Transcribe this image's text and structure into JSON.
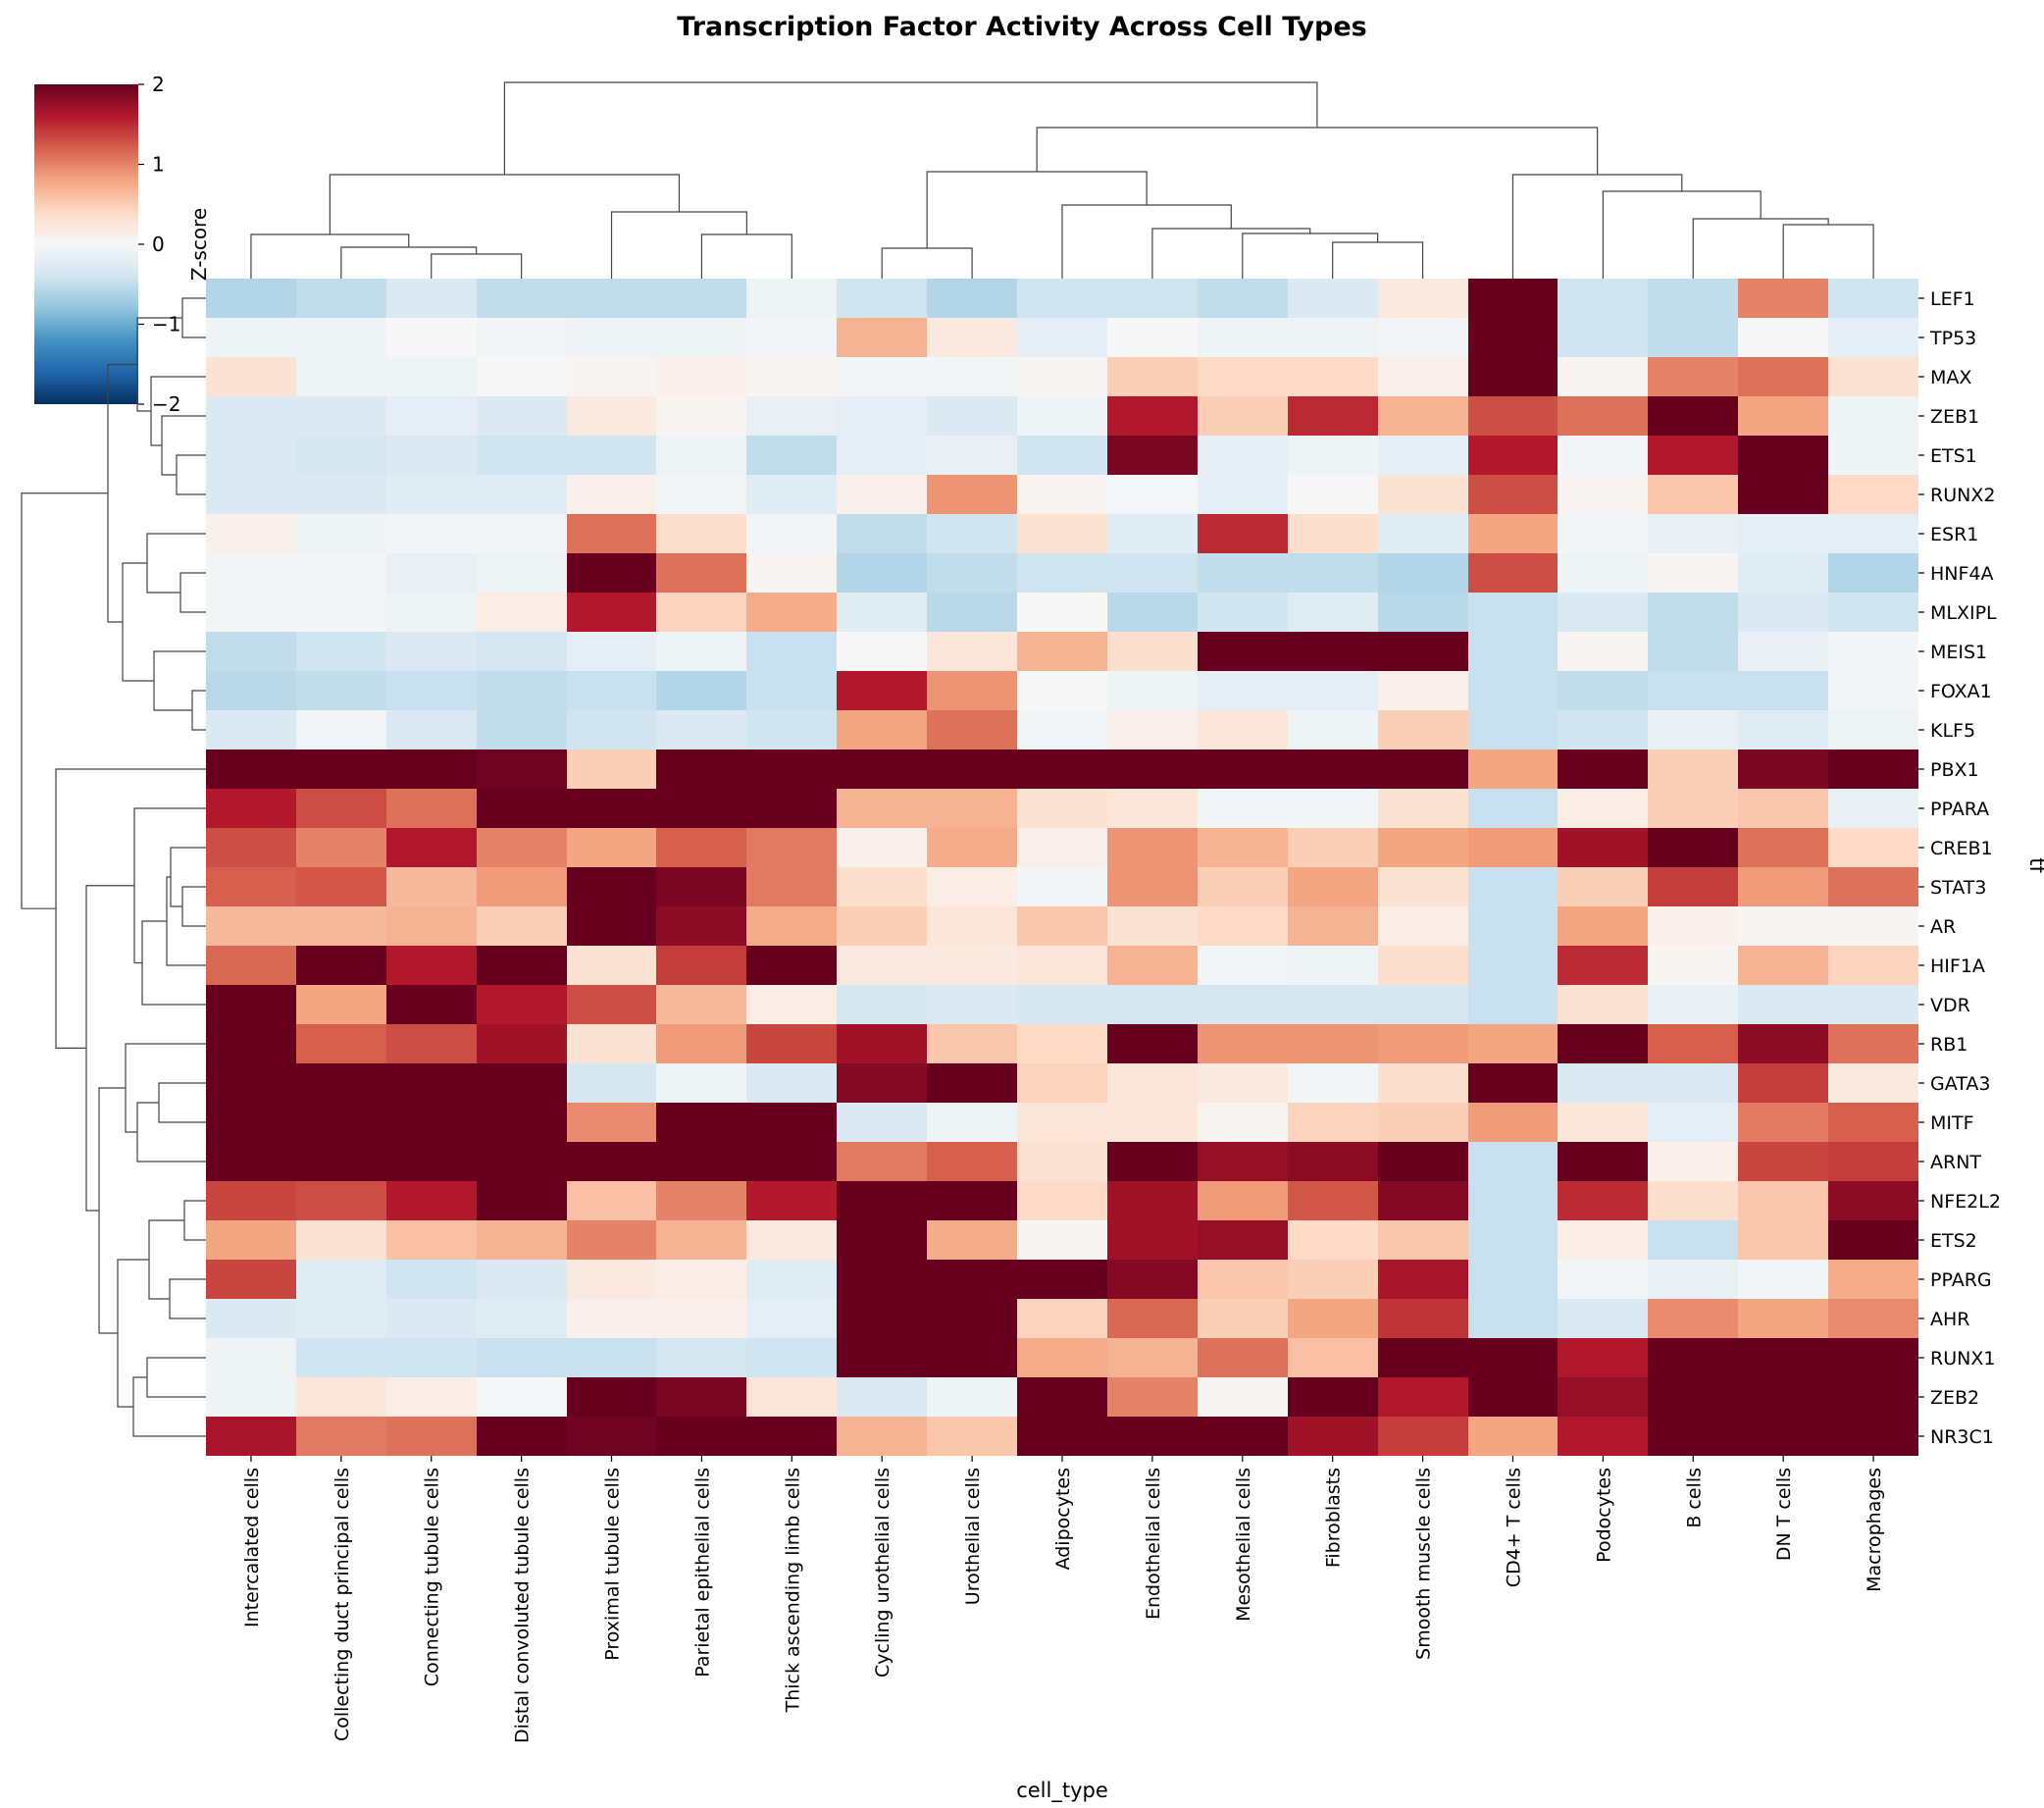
{
  "chart_data": {
    "type": "heatmap",
    "title": "Transcription Factor Activity Across Cell Types",
    "xlabel": "cell_type",
    "ylabel": "tf",
    "colorbar": {
      "label": "Z-score",
      "colormap": "RdBu_r",
      "vmin": -2,
      "vmax": 2,
      "ticks": [
        2,
        1,
        0,
        -1,
        -2
      ],
      "tick_labels": [
        "2",
        "1",
        "0",
        "−1",
        "−2"
      ]
    },
    "dendrograms": [
      "columns",
      "rows"
    ],
    "columns": [
      "Intercalated cells",
      "Collecting duct principal cells",
      "Connecting tubule cells",
      "Distal convoluted tubule cells",
      "Proximal tubule cells",
      "Parietal epithelial cells",
      "Thick ascending limb cells",
      "Cycling urothelial cells",
      "Urothelial cells",
      "Adipocytes",
      "Endothelial cells",
      "Mesothelial cells",
      "Fibroblasts",
      "Smooth muscle cells",
      "CD4+ T cells",
      "Podocytes",
      "B cells",
      "DN T cells",
      "Macrophages"
    ],
    "rows": [
      "LEF1",
      "TP53",
      "MAX",
      "ZEB1",
      "ETS1",
      "RUNX2",
      "ESR1",
      "HNF4A",
      "MLXIPL",
      "MEIS1",
      "FOXA1",
      "KLF5",
      "PBX1",
      "PPARA",
      "CREB1",
      "STAT3",
      "AR",
      "HIF1A",
      "VDR",
      "RB1",
      "GATA3",
      "MITF",
      "ARNT",
      "NFE2L2",
      "ETS2",
      "PPARG",
      "AHR",
      "RUNX1",
      "ZEB2",
      "NR3C1"
    ],
    "values": [
      [
        -0.6,
        -0.5,
        -0.3,
        -0.5,
        -0.5,
        -0.5,
        -0.1,
        -0.4,
        -0.6,
        -0.4,
        -0.4,
        -0.5,
        -0.3,
        0.2,
        2.0,
        -0.4,
        -0.5,
        1.0,
        -0.4
      ],
      [
        -0.1,
        -0.1,
        0.0,
        -0.05,
        -0.1,
        -0.1,
        -0.05,
        0.7,
        0.2,
        -0.2,
        0.0,
        -0.1,
        -0.1,
        -0.05,
        2.0,
        -0.4,
        -0.5,
        0.0,
        -0.2
      ],
      [
        0.3,
        -0.1,
        -0.1,
        0.0,
        0.05,
        0.1,
        0.05,
        -0.05,
        -0.05,
        0.05,
        0.5,
        0.4,
        0.4,
        0.1,
        2.0,
        0.05,
        1.0,
        1.1,
        0.3
      ],
      [
        -0.3,
        -0.3,
        -0.2,
        -0.3,
        0.2,
        0.05,
        -0.15,
        -0.2,
        -0.3,
        -0.1,
        1.6,
        0.5,
        1.5,
        0.7,
        1.3,
        1.1,
        2.0,
        0.8,
        -0.1
      ],
      [
        -0.3,
        -0.35,
        -0.3,
        -0.4,
        -0.4,
        -0.1,
        -0.5,
        -0.2,
        -0.15,
        -0.4,
        1.9,
        -0.2,
        -0.1,
        -0.2,
        1.6,
        -0.05,
        1.6,
        2.0,
        -0.1
      ],
      [
        -0.3,
        -0.3,
        -0.25,
        -0.25,
        0.1,
        -0.05,
        -0.25,
        0.1,
        0.9,
        0.05,
        -0.02,
        -0.2,
        0.0,
        0.3,
        1.3,
        0.05,
        0.55,
        2.0,
        0.4
      ],
      [
        0.1,
        -0.1,
        -0.05,
        -0.05,
        1.1,
        0.35,
        -0.05,
        -0.5,
        -0.4,
        0.3,
        -0.25,
        1.5,
        0.35,
        -0.25,
        0.8,
        -0.05,
        -0.15,
        -0.2,
        -0.2
      ],
      [
        -0.05,
        -0.05,
        -0.15,
        -0.1,
        2.0,
        1.1,
        0.05,
        -0.6,
        -0.5,
        -0.4,
        -0.4,
        -0.5,
        -0.5,
        -0.6,
        1.3,
        -0.1,
        0.05,
        -0.25,
        -0.6
      ],
      [
        -0.05,
        -0.05,
        -0.1,
        0.15,
        1.6,
        0.45,
        0.75,
        -0.25,
        -0.55,
        0.0,
        -0.55,
        -0.4,
        -0.25,
        -0.55,
        -0.45,
        -0.3,
        -0.5,
        -0.3,
        -0.4
      ],
      [
        -0.5,
        -0.4,
        -0.3,
        -0.35,
        -0.2,
        -0.1,
        -0.45,
        0.0,
        0.25,
        0.7,
        0.35,
        2.0,
        2.0,
        2.0,
        -0.45,
        0.05,
        -0.5,
        -0.15,
        -0.05
      ],
      [
        -0.55,
        -0.5,
        -0.45,
        -0.5,
        -0.45,
        -0.6,
        -0.45,
        1.6,
        0.9,
        0.0,
        -0.1,
        -0.2,
        -0.2,
        0.1,
        -0.45,
        -0.5,
        -0.45,
        -0.45,
        -0.05
      ],
      [
        -0.3,
        -0.05,
        -0.3,
        -0.5,
        -0.4,
        -0.3,
        -0.4,
        0.8,
        1.1,
        -0.05,
        0.1,
        0.25,
        -0.1,
        0.5,
        -0.45,
        -0.4,
        -0.15,
        -0.25,
        -0.1
      ],
      [
        2.0,
        2.0,
        2.0,
        1.95,
        0.5,
        2.0,
        2.0,
        2.0,
        2.0,
        2.0,
        2.0,
        2.0,
        2.0,
        2.0,
        0.8,
        2.0,
        0.5,
        1.9,
        2.0
      ],
      [
        1.6,
        1.3,
        1.1,
        2.0,
        2.0,
        2.0,
        2.0,
        0.7,
        0.7,
        0.3,
        0.25,
        -0.05,
        -0.05,
        0.3,
        -0.45,
        0.15,
        0.5,
        0.55,
        -0.15
      ],
      [
        1.3,
        1.0,
        1.6,
        1.0,
        0.8,
        1.2,
        1.05,
        0.1,
        0.75,
        0.1,
        0.9,
        0.7,
        0.5,
        0.8,
        0.85,
        1.7,
        2.0,
        1.1,
        0.4
      ],
      [
        1.2,
        1.25,
        0.65,
        0.85,
        2.0,
        1.9,
        1.05,
        0.35,
        0.15,
        -0.05,
        0.9,
        0.5,
        0.8,
        0.3,
        -0.45,
        0.5,
        1.4,
        0.85,
        1.1
      ],
      [
        0.65,
        0.65,
        0.7,
        0.5,
        2.0,
        1.8,
        0.75,
        0.5,
        0.25,
        0.55,
        0.3,
        0.4,
        0.7,
        0.15,
        -0.45,
        0.8,
        0.1,
        0.05,
        0.05
      ],
      [
        1.15,
        2.0,
        1.6,
        2.0,
        0.3,
        1.4,
        2.0,
        0.2,
        0.2,
        0.25,
        0.7,
        -0.05,
        -0.1,
        0.35,
        -0.45,
        1.5,
        0.05,
        0.7,
        0.45
      ],
      [
        2.0,
        0.8,
        2.0,
        1.6,
        1.3,
        0.65,
        0.15,
        -0.35,
        -0.3,
        -0.35,
        -0.35,
        -0.35,
        -0.35,
        -0.35,
        -0.45,
        0.3,
        -0.15,
        -0.3,
        -0.3
      ],
      [
        2.0,
        1.2,
        1.3,
        1.7,
        0.3,
        0.85,
        1.35,
        1.7,
        0.55,
        0.4,
        2.0,
        0.9,
        0.9,
        0.85,
        0.8,
        2.0,
        1.2,
        1.8,
        1.1
      ],
      [
        2.0,
        2.0,
        2.0,
        2.0,
        -0.35,
        -0.1,
        -0.3,
        1.85,
        2.0,
        0.45,
        0.25,
        0.2,
        -0.05,
        0.35,
        2.0,
        -0.3,
        -0.3,
        1.4,
        0.2
      ],
      [
        2.0,
        2.0,
        2.0,
        2.0,
        0.95,
        2.0,
        2.0,
        -0.3,
        -0.1,
        0.25,
        0.25,
        0.05,
        0.45,
        0.5,
        0.85,
        0.25,
        -0.2,
        1.05,
        1.2
      ],
      [
        2.0,
        2.0,
        2.0,
        2.0,
        2.0,
        2.0,
        2.0,
        1.05,
        1.2,
        0.3,
        2.0,
        1.75,
        1.8,
        2.0,
        -0.45,
        2.0,
        0.1,
        1.35,
        1.4
      ],
      [
        1.35,
        1.3,
        1.6,
        2.0,
        0.6,
        1.0,
        1.6,
        2.0,
        2.0,
        0.4,
        1.7,
        0.85,
        1.25,
        1.85,
        -0.45,
        1.5,
        0.35,
        0.55,
        1.8
      ],
      [
        0.8,
        0.3,
        0.6,
        0.7,
        1.0,
        0.7,
        0.2,
        2.0,
        0.75,
        0.05,
        1.7,
        1.75,
        0.4,
        0.55,
        -0.45,
        0.15,
        -0.45,
        0.55,
        2.0
      ],
      [
        1.35,
        -0.25,
        -0.4,
        -0.3,
        0.2,
        0.15,
        -0.25,
        2.0,
        2.0,
        2.0,
        1.85,
        0.55,
        0.5,
        1.65,
        -0.45,
        -0.05,
        -0.15,
        -0.05,
        0.75
      ],
      [
        -0.3,
        -0.25,
        -0.3,
        -0.25,
        0.1,
        0.1,
        -0.2,
        2.0,
        2.0,
        0.45,
        1.15,
        0.5,
        0.8,
        1.45,
        -0.45,
        -0.3,
        0.95,
        0.8,
        0.95
      ],
      [
        -0.1,
        -0.4,
        -0.4,
        -0.45,
        -0.45,
        -0.35,
        -0.4,
        2.0,
        2.0,
        0.75,
        0.7,
        1.1,
        0.6,
        2.0,
        2.0,
        1.6,
        2.0,
        2.0,
        2.0
      ],
      [
        -0.1,
        0.25,
        0.15,
        -0.02,
        2.0,
        1.9,
        0.25,
        -0.3,
        -0.1,
        2.0,
        1.0,
        0.05,
        2.0,
        1.6,
        2.0,
        1.75,
        2.0,
        2.0,
        2.0
      ],
      [
        1.65,
        1.05,
        1.1,
        2.0,
        1.95,
        2.0,
        2.0,
        0.7,
        0.55,
        2.0,
        2.0,
        2.0,
        1.7,
        1.4,
        0.8,
        1.6,
        2.0,
        2.0,
        2.0
      ]
    ]
  }
}
